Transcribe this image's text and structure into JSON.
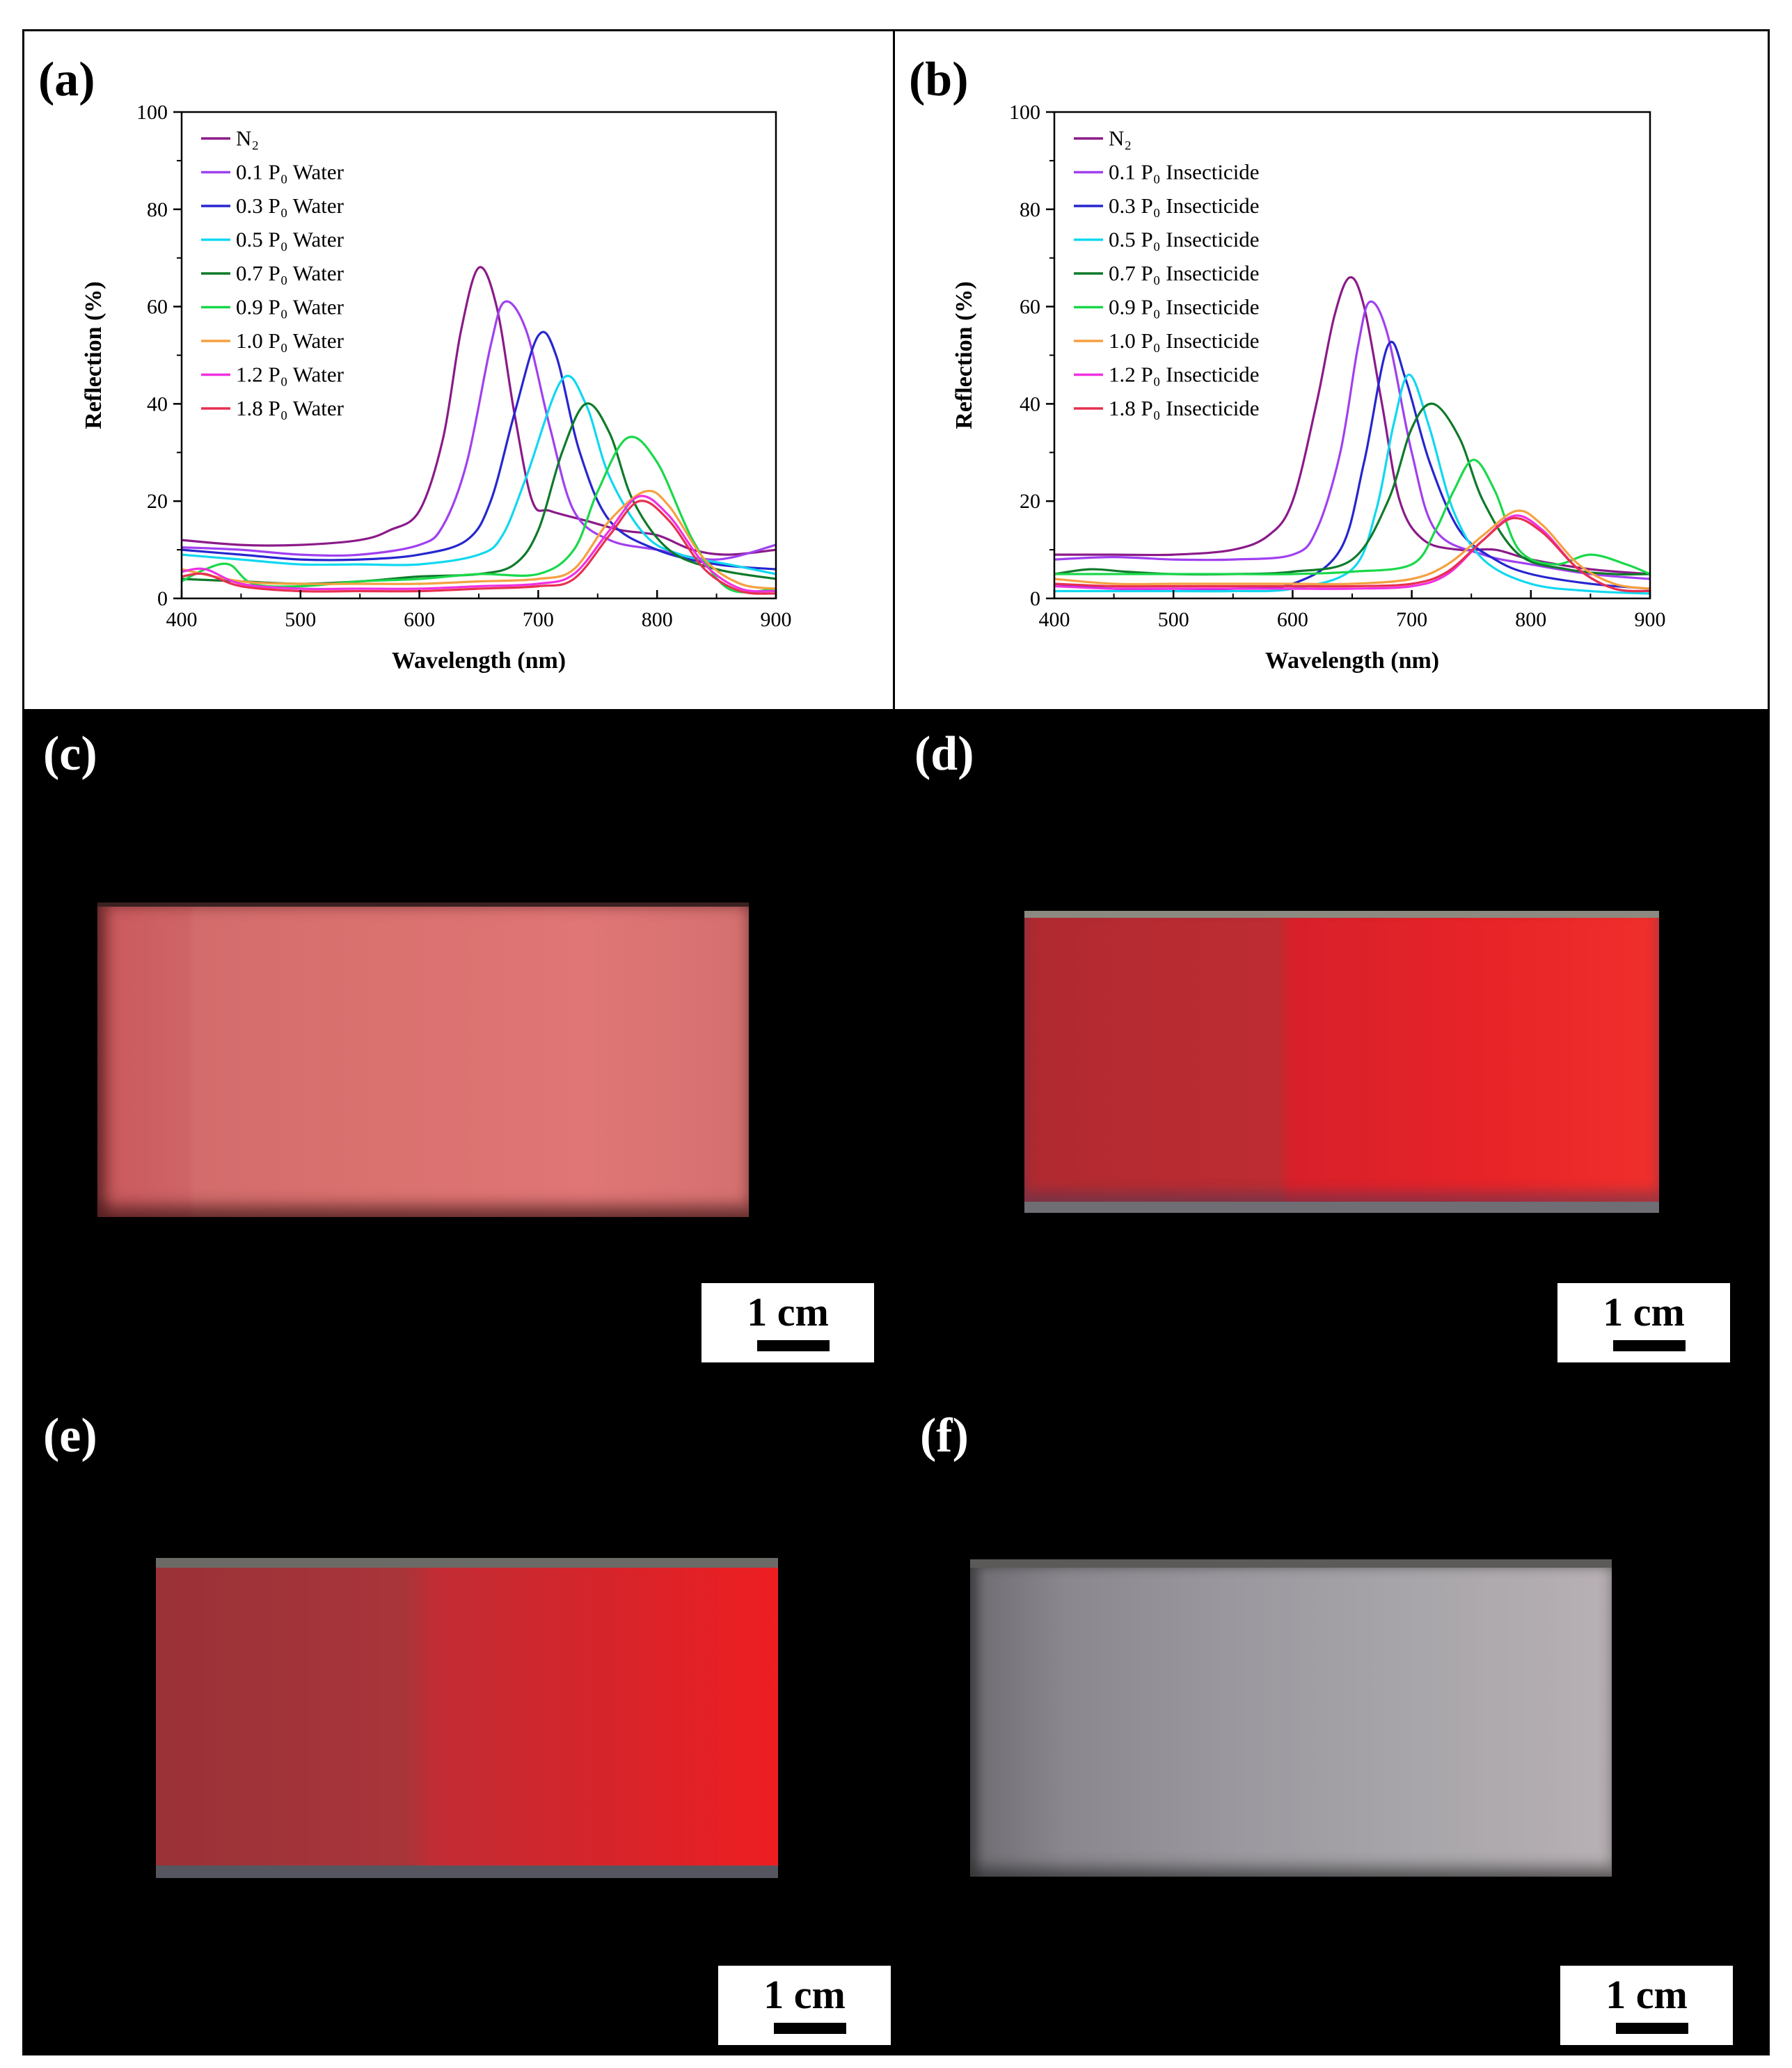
{
  "chart_data": [
    {
      "type": "line",
      "panel_label": "(a)",
      "title": "",
      "xlabel": "Wavelength (nm)",
      "ylabel": "Reflection (%)",
      "xlim": [
        400,
        900
      ],
      "ylim": [
        0,
        100
      ],
      "xticks": [
        400,
        500,
        600,
        700,
        800,
        900
      ],
      "yticks": [
        0,
        20,
        40,
        60,
        80,
        100
      ],
      "legend_position": "top-left",
      "grid": false,
      "series": [
        {
          "name": "N₂",
          "color": "#8B1A89",
          "x": [
            400,
            450,
            500,
            550,
            575,
            600,
            620,
            635,
            650,
            665,
            680,
            695,
            710,
            740,
            770,
            800,
            830,
            860,
            900
          ],
          "y": [
            12,
            11,
            11,
            12,
            14,
            18,
            33,
            55,
            68,
            60,
            38,
            20,
            18,
            16,
            14,
            13,
            10,
            9,
            10
          ]
        },
        {
          "name": "0.1 P₀ Water",
          "color": "#A040F0",
          "x": [
            400,
            450,
            500,
            550,
            600,
            620,
            640,
            660,
            672,
            690,
            710,
            730,
            760,
            800,
            850,
            900
          ],
          "y": [
            10.5,
            10,
            9,
            9,
            11,
            15,
            28,
            52,
            61,
            55,
            35,
            18,
            12,
            10,
            8,
            11
          ]
        },
        {
          "name": "0.3 P₀ Water",
          "color": "#2626D0",
          "x": [
            400,
            450,
            500,
            550,
            600,
            640,
            660,
            680,
            700,
            715,
            735,
            760,
            800,
            850,
            900
          ],
          "y": [
            10,
            9,
            8,
            8,
            9,
            12,
            20,
            38,
            54,
            50,
            30,
            16,
            10,
            7,
            6
          ]
        },
        {
          "name": "0.5 P₀ Water",
          "color": "#10D8F0",
          "x": [
            400,
            450,
            500,
            550,
            600,
            650,
            670,
            690,
            720,
            740,
            760,
            790,
            820,
            860,
            900
          ],
          "y": [
            9,
            8,
            7,
            7,
            7,
            9,
            13,
            25,
            45,
            40,
            25,
            13,
            9,
            7,
            5
          ]
        },
        {
          "name": "0.7 P₀ Water",
          "color": "#0E7A2A",
          "x": [
            400,
            450,
            500,
            550,
            600,
            650,
            680,
            700,
            720,
            740,
            760,
            780,
            810,
            850,
            900
          ],
          "y": [
            4,
            3.5,
            3,
            3.5,
            4.5,
            5,
            7,
            14,
            30,
            40,
            34,
            20,
            10,
            6,
            4
          ]
        },
        {
          "name": "0.9 P₀ Water",
          "color": "#1AD84A",
          "x": [
            400,
            420,
            440,
            460,
            500,
            550,
            600,
            650,
            700,
            730,
            750,
            775,
            800,
            830,
            860,
            900
          ],
          "y": [
            3.5,
            6,
            7,
            3,
            2.5,
            3.5,
            4,
            5,
            5,
            10,
            22,
            33,
            28,
            12,
            2,
            2
          ]
        },
        {
          "name": "1.0 P₀ Water",
          "color": "#F5A040",
          "x": [
            400,
            450,
            500,
            550,
            600,
            650,
            700,
            730,
            760,
            790,
            810,
            840,
            870,
            900
          ],
          "y": [
            6,
            3.5,
            3,
            3,
            3,
            3.5,
            4,
            6,
            16,
            22,
            19,
            8,
            3,
            2
          ]
        },
        {
          "name": "1.2 P₀ Water",
          "color": "#F030E0",
          "x": [
            400,
            420,
            450,
            500,
            550,
            600,
            650,
            700,
            730,
            760,
            785,
            810,
            840,
            870,
            900
          ],
          "y": [
            5.5,
            6,
            3,
            2,
            2,
            2,
            2.5,
            3,
            5,
            14,
            21,
            17,
            7,
            2,
            1.5
          ]
        },
        {
          "name": "1.8 P₀ Water",
          "color": "#E83050",
          "x": [
            400,
            420,
            450,
            500,
            550,
            600,
            650,
            700,
            730,
            760,
            785,
            810,
            840,
            870,
            900
          ],
          "y": [
            4.5,
            5,
            2.5,
            1.5,
            1.5,
            1.5,
            2,
            2.5,
            4,
            13,
            20,
            16,
            6,
            1.5,
            1
          ]
        }
      ]
    },
    {
      "type": "line",
      "panel_label": "(b)",
      "title": "",
      "xlabel": "Wavelength (nm)",
      "ylabel": "Reflection (%)",
      "xlim": [
        400,
        900
      ],
      "ylim": [
        0,
        100
      ],
      "xticks": [
        400,
        500,
        600,
        700,
        800,
        900
      ],
      "yticks": [
        0,
        20,
        40,
        60,
        80,
        100
      ],
      "legend_position": "top-left",
      "grid": false,
      "series": [
        {
          "name": "N₂",
          "color": "#8B1A89",
          "x": [
            400,
            450,
            500,
            550,
            580,
            600,
            620,
            635,
            648,
            660,
            675,
            690,
            710,
            740,
            770,
            800,
            850,
            900
          ],
          "y": [
            9,
            9,
            9,
            10,
            13,
            20,
            40,
            58,
            66,
            60,
            40,
            20,
            12,
            10,
            10,
            8,
            6,
            5
          ]
        },
        {
          "name": "0.1 P₀ Insecticide",
          "color": "#A040F0",
          "x": [
            400,
            450,
            500,
            550,
            600,
            620,
            640,
            655,
            665,
            680,
            700,
            720,
            760,
            800,
            850,
            900
          ],
          "y": [
            8,
            8.5,
            8,
            8,
            9,
            14,
            30,
            52,
            61,
            54,
            30,
            14,
            9,
            7,
            5,
            4
          ]
        },
        {
          "name": "0.3 P₀ Insecticide",
          "color": "#2626D0",
          "x": [
            400,
            450,
            500,
            550,
            600,
            640,
            660,
            680,
            695,
            715,
            740,
            770,
            800,
            850,
            900
          ],
          "y": [
            3,
            2,
            2,
            2,
            3,
            10,
            28,
            52,
            45,
            28,
            14,
            8,
            5,
            3,
            2
          ]
        },
        {
          "name": "0.5 P₀ Insecticide",
          "color": "#10D8F0",
          "x": [
            400,
            450,
            500,
            550,
            600,
            650,
            670,
            685,
            698,
            715,
            735,
            760,
            800,
            850,
            900
          ],
          "y": [
            1.5,
            1.5,
            1.5,
            1.5,
            2,
            6,
            18,
            36,
            46,
            35,
            18,
            8,
            3,
            1.5,
            1
          ]
        },
        {
          "name": "0.7 P₀ Insecticide",
          "color": "#0E7A2A",
          "x": [
            400,
            430,
            460,
            500,
            550,
            600,
            650,
            680,
            700,
            718,
            740,
            760,
            790,
            830,
            870,
            900
          ],
          "y": [
            5,
            6,
            5.5,
            5,
            5,
            5.5,
            8,
            20,
            35,
            40,
            33,
            20,
            9,
            6,
            5,
            5
          ]
        },
        {
          "name": "0.9 P₀ Insecticide",
          "color": "#1AD84A",
          "x": [
            400,
            450,
            500,
            550,
            600,
            650,
            700,
            720,
            735,
            752,
            770,
            790,
            820,
            850,
            880,
            900
          ],
          "y": [
            5,
            5,
            5,
            5,
            5,
            5.5,
            7,
            14,
            22,
            28.5,
            22,
            10,
            7,
            9,
            7,
            5
          ]
        },
        {
          "name": "1.0 P₀ Insecticide",
          "color": "#F5A040",
          "x": [
            400,
            450,
            500,
            550,
            600,
            650,
            700,
            730,
            760,
            788,
            810,
            840,
            870,
            900
          ],
          "y": [
            4,
            3,
            3,
            3,
            3,
            3,
            4,
            7,
            13,
            18,
            15,
            7,
            3,
            2
          ]
        },
        {
          "name": "1.2 P₀ Insecticide",
          "color": "#F030E0",
          "x": [
            400,
            450,
            500,
            550,
            600,
            650,
            700,
            730,
            760,
            786,
            810,
            840,
            870,
            900
          ],
          "y": [
            2.5,
            2,
            2,
            2,
            2,
            2,
            2.5,
            5,
            12,
            17,
            14,
            6,
            2,
            1.5
          ]
        },
        {
          "name": "1.8 P₀ Insecticide",
          "color": "#E83050",
          "x": [
            400,
            450,
            500,
            550,
            600,
            650,
            700,
            730,
            760,
            785,
            810,
            840,
            870,
            900
          ],
          "y": [
            3,
            2.5,
            2.5,
            2.5,
            2.5,
            2.5,
            3,
            5.5,
            12,
            16.5,
            13.5,
            6,
            2,
            1.5
          ]
        }
      ]
    }
  ],
  "photos": [
    {
      "label": "(c)",
      "scale": "1 cm"
    },
    {
      "label": "(d)",
      "scale": "1 cm"
    },
    {
      "label": "(e)",
      "scale": "1 cm"
    },
    {
      "label": "(f)",
      "scale": "1 cm"
    }
  ]
}
